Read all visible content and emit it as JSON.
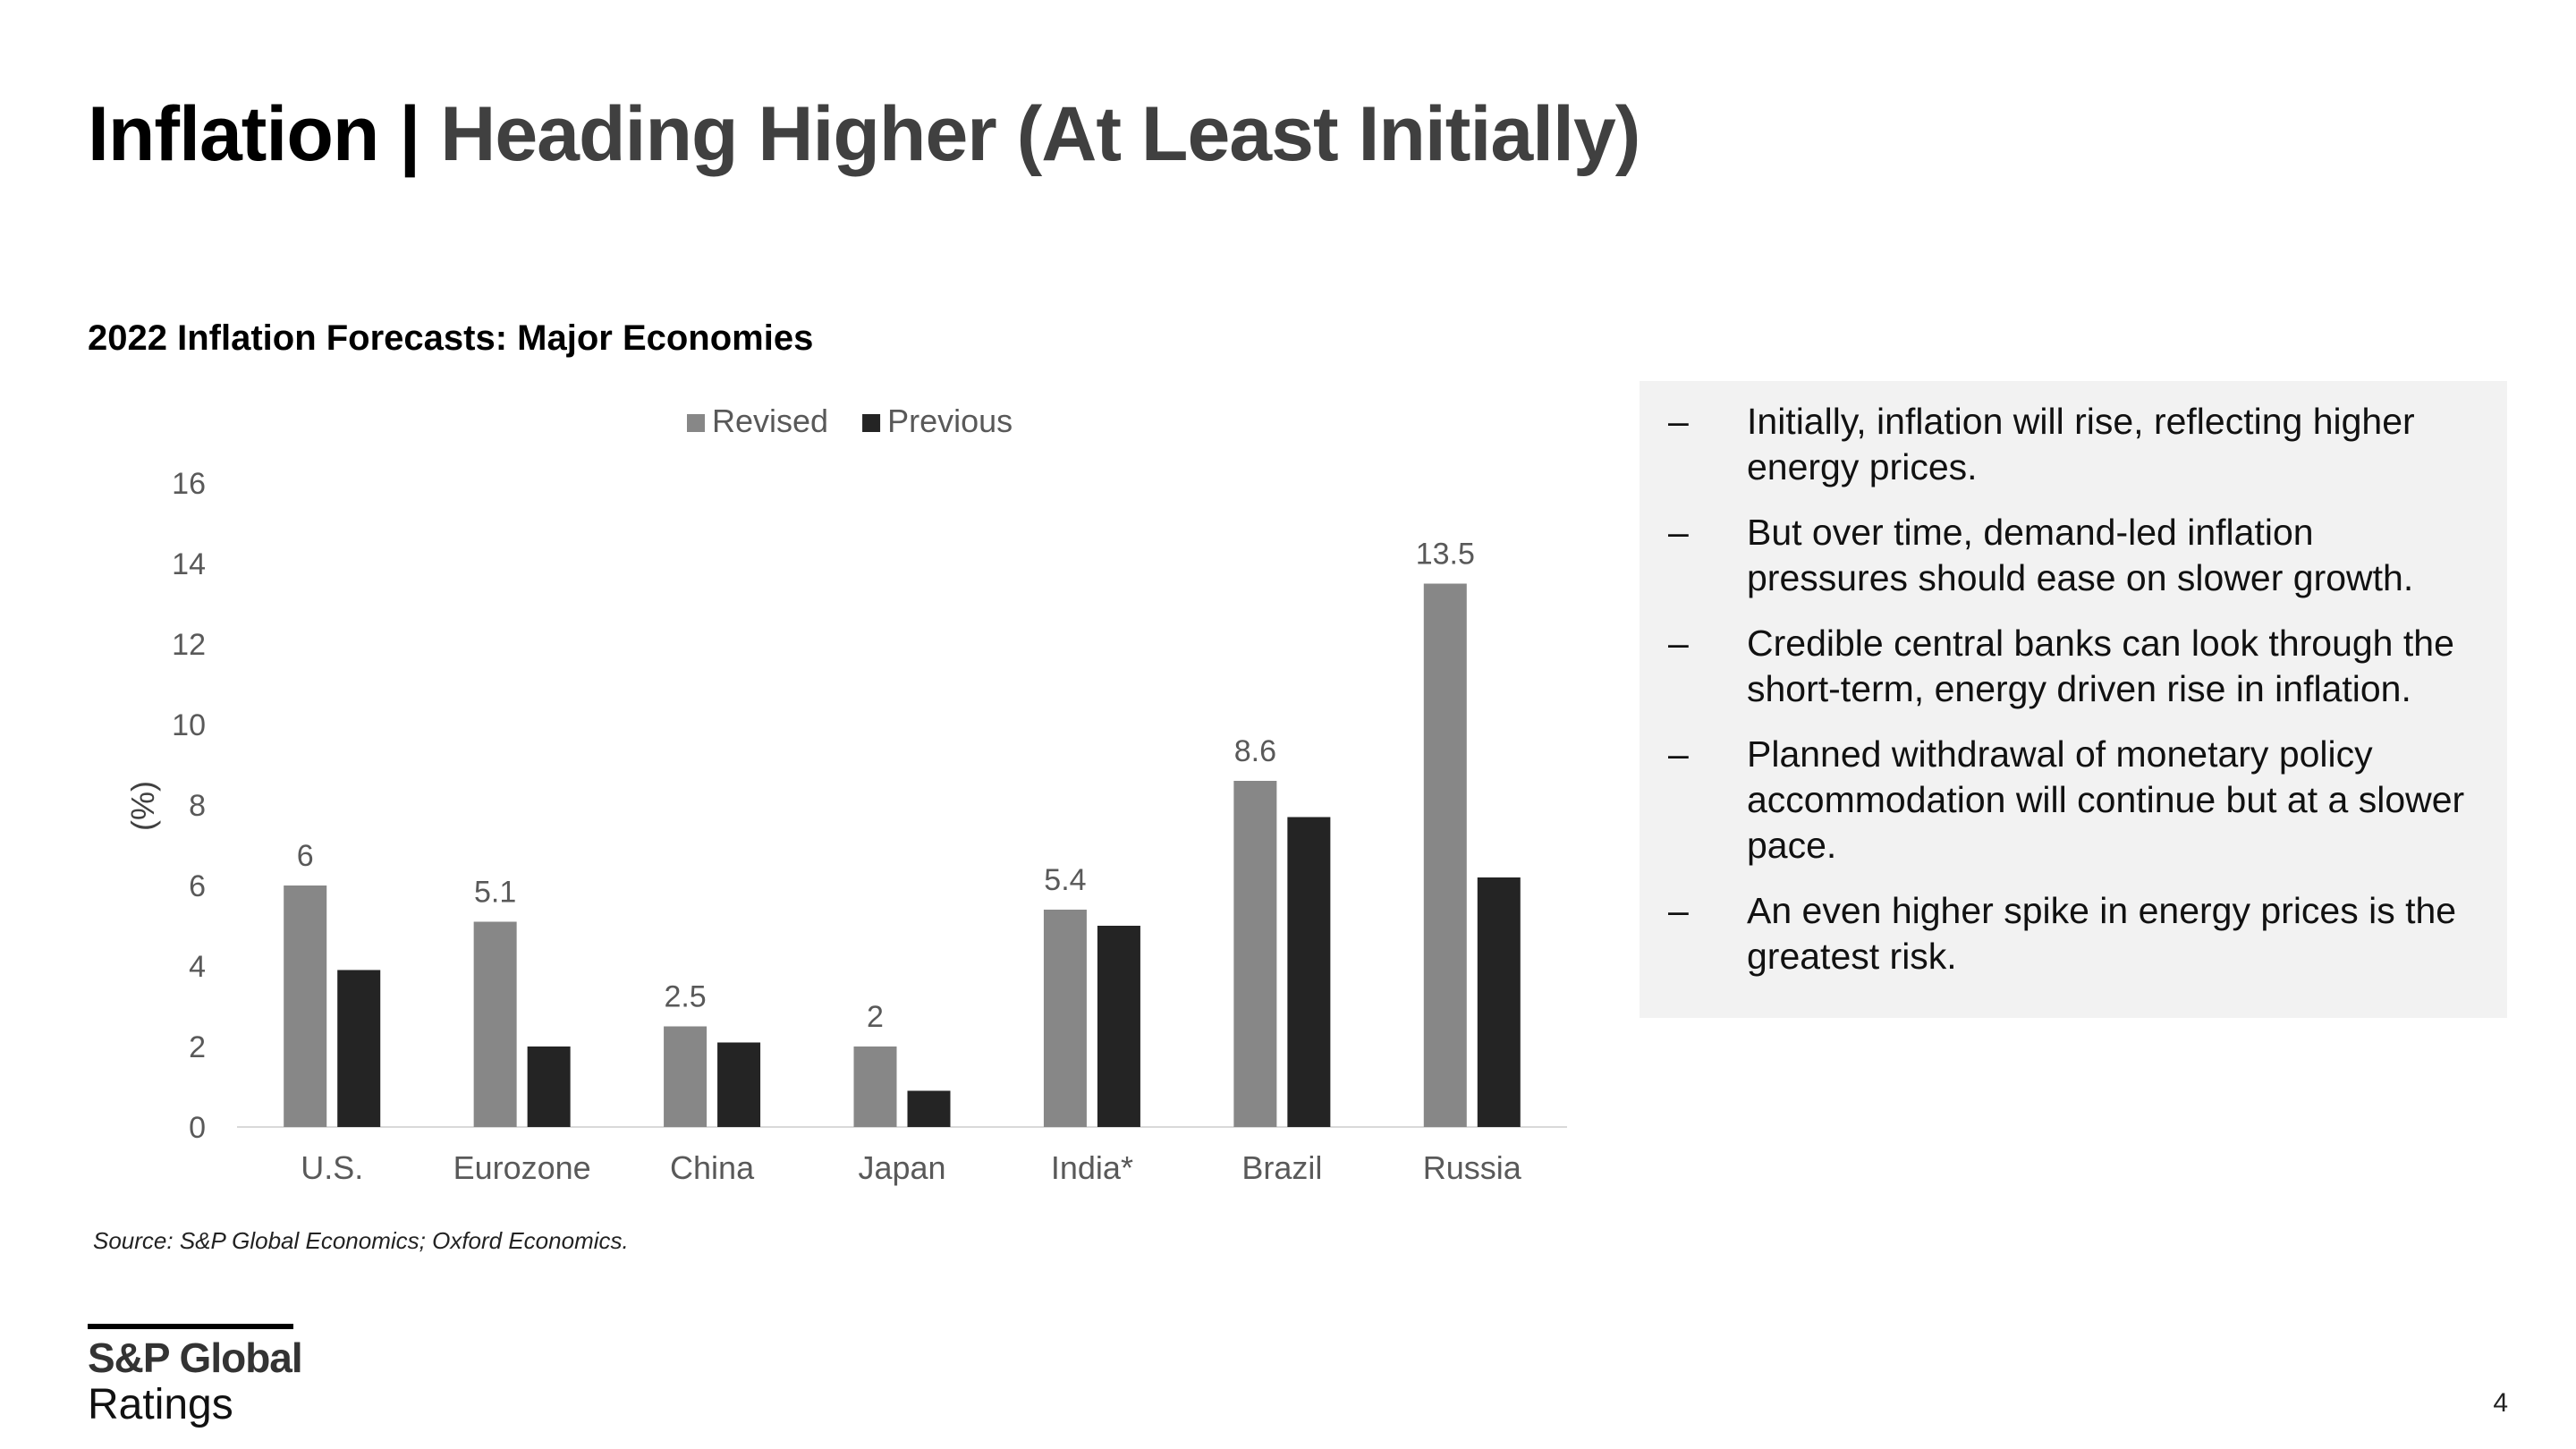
{
  "header": {
    "title_main": "Inflation |",
    "title_sub": "Heading Higher (At Least Initially)"
  },
  "chart_heading": "2022 Inflation Forecasts: Major Economies",
  "chart_data": {
    "type": "bar",
    "categories": [
      "U.S.",
      "Eurozone",
      "China",
      "Japan",
      "India*",
      "Brazil",
      "Russia"
    ],
    "series": [
      {
        "name": "Revised",
        "values": [
          6,
          5.1,
          2.5,
          2,
          5.4,
          8.6,
          13.5
        ],
        "color": "#878787",
        "labels": [
          "6",
          "5.1",
          "2.5",
          "2",
          "5.4",
          "8.6",
          "13.5"
        ]
      },
      {
        "name": "Previous",
        "values": [
          3.9,
          2.0,
          2.1,
          0.9,
          5.0,
          7.7,
          6.2
        ],
        "color": "#242424"
      }
    ],
    "ylabel": "(%)",
    "xlabel": "",
    "ylim": [
      0,
      16
    ],
    "yticks": [
      "0",
      "2",
      "4",
      "6",
      "8",
      "10",
      "12",
      "14",
      "16"
    ],
    "grid": false,
    "legend_position": "top-center"
  },
  "source": "Source: S&P Global Economics; Oxford Economics.",
  "bullets": [
    "Initially, inflation will rise, reflecting higher energy prices.",
    "But over time, demand-led inflation pressures should ease on slower growth.",
    "Credible central banks can look through the short-term, energy driven rise in inflation.",
    "Planned withdrawal of monetary policy accommodation will continue but at a slower pace.",
    "An even higher spike in energy prices is the greatest risk."
  ],
  "bullet_marker": "–",
  "logo": {
    "top": "S&P Global",
    "bottom": "Ratings"
  },
  "page_number": "4"
}
